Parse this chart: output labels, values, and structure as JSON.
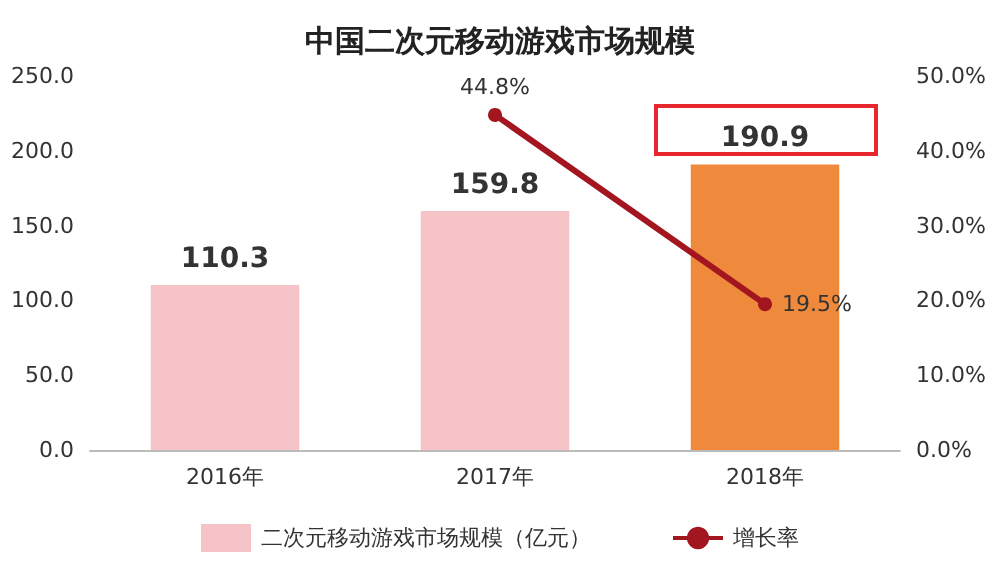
{
  "chart_data": {
    "type": "bar",
    "title": "中国二次元移动游戏市场规模",
    "categories": [
      "2016年",
      "2017年",
      "2018年"
    ],
    "series": [
      {
        "name": "二次元移动游戏市场规模（亿元）",
        "color": "#f6c3c8",
        "colors": [
          "#f6c3c8",
          "#f6c3c8",
          "#ef8a3c"
        ],
        "values": [
          110.3,
          159.8,
          190.9
        ],
        "value_labels": [
          "110.3",
          "159.8",
          "190.9"
        ]
      },
      {
        "name": "增长率",
        "type": "line",
        "axis": "y2",
        "color": "#a3161f",
        "marker": "circle",
        "values": [
          null,
          44.8,
          19.5
        ],
        "value_labels": [
          null,
          "44.8%",
          "19.5%"
        ]
      }
    ],
    "ylim": [
      0,
      250
    ],
    "yticks": [
      {
        "value": 0,
        "label": "0.0"
      },
      {
        "value": 50,
        "label": "50.0"
      },
      {
        "value": 100,
        "label": "100.0"
      },
      {
        "value": 150,
        "label": "150.0"
      },
      {
        "value": 200,
        "label": "200.0"
      },
      {
        "value": 250,
        "label": "250.0"
      }
    ],
    "y2lim": [
      0,
      50
    ],
    "y2ticks": [
      {
        "value": 0,
        "label": "0.0%"
      },
      {
        "value": 10,
        "label": "10.0%"
      },
      {
        "value": 20,
        "label": "20.0%"
      },
      {
        "value": 30,
        "label": "30.0%"
      },
      {
        "value": 40,
        "label": "40.0%"
      },
      {
        "value": 50,
        "label": "50.0%"
      }
    ],
    "legend": "bottom"
  }
}
